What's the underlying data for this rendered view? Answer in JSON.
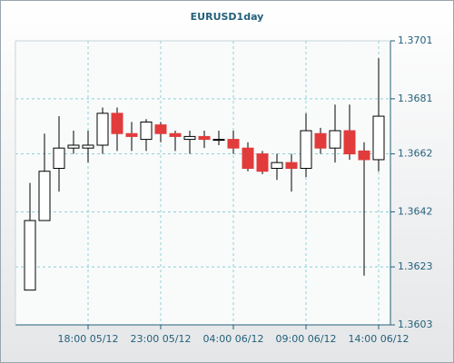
{
  "chart_data": {
    "type": "candlestick",
    "title": "EURUSD1day",
    "categories": [
      null,
      null,
      null,
      null,
      "18:00 05/12",
      null,
      null,
      null,
      null,
      "23:00 05/12",
      null,
      null,
      null,
      null,
      "04:00 06/12",
      null,
      null,
      null,
      null,
      "09:00 06/12",
      null,
      null,
      null,
      null,
      "14:00 06/12"
    ],
    "open": [
      1.3615,
      1.3639,
      1.3657,
      1.3664,
      1.3664,
      1.3665,
      1.3676,
      1.3669,
      1.3667,
      1.3672,
      1.3669,
      1.3667,
      1.3668,
      1.3667,
      1.3667,
      1.3664,
      1.3662,
      1.3657,
      1.3659,
      1.3657,
      1.3669,
      1.3664,
      1.367,
      1.3663,
      1.366
    ],
    "high": [
      1.3652,
      1.3669,
      1.3675,
      1.367,
      1.367,
      1.3678,
      1.3678,
      1.3673,
      1.3674,
      1.3673,
      1.367,
      1.367,
      1.367,
      1.367,
      1.367,
      1.3666,
      1.3663,
      1.3662,
      1.3662,
      1.3676,
      1.3671,
      1.3679,
      1.3679,
      1.3666,
      1.3695
    ],
    "low": [
      1.3615,
      1.3639,
      1.3649,
      1.3662,
      1.3659,
      1.3662,
      1.3663,
      1.3663,
      1.3663,
      1.3666,
      1.3663,
      1.3662,
      1.3664,
      1.3665,
      1.3662,
      1.3656,
      1.3655,
      1.3653,
      1.3649,
      1.3654,
      1.3662,
      1.3659,
      1.366,
      1.362,
      1.3656
    ],
    "close": [
      1.3639,
      1.3656,
      1.3664,
      1.3665,
      1.3665,
      1.3676,
      1.3669,
      1.3668,
      1.3673,
      1.3669,
      1.3668,
      1.3668,
      1.3667,
      1.3667,
      1.3664,
      1.3657,
      1.3656,
      1.3659,
      1.3657,
      1.367,
      1.3664,
      1.367,
      1.3662,
      1.366,
      1.3675
    ],
    "up_color": "#ffffff",
    "down_color": "#e23b3b",
    "ylim": [
      1.3603,
      1.3701
    ],
    "yticks": [
      1.3603,
      1.3623,
      1.3642,
      1.3662,
      1.3681,
      1.3701
    ],
    "grid": true
  }
}
